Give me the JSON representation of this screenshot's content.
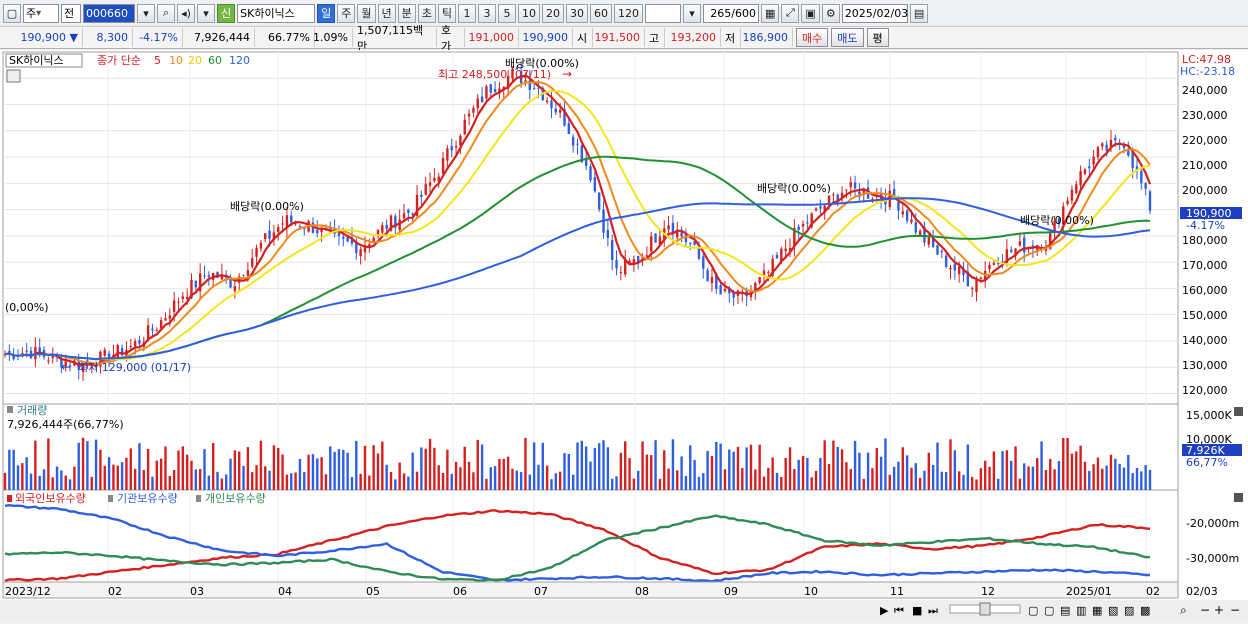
{
  "toolbar": {
    "period_options": [
      "주",
      "전"
    ],
    "stock_code": "000660",
    "stock_name": "SK하이닉스",
    "new_badge": "신",
    "periods": [
      "일",
      "주",
      "월",
      "년",
      "분",
      "초",
      "틱"
    ],
    "active_period": "일",
    "intervals": [
      "1",
      "3",
      "5",
      "10",
      "20",
      "30",
      "60",
      "120"
    ],
    "count_value": "265",
    "count_total": "/600",
    "date": "2025/02/03"
  },
  "quote": {
    "price": "190,900",
    "change": "8,300",
    "change_pct": "-4.17%",
    "volume": "7,926,444",
    "volume_ratio": "66.77%",
    "turnover_pct": "1.09%",
    "amount": "1,507,115백만",
    "bid_label": "호가",
    "ask": "191,000",
    "bid": "190,900",
    "open_label": "시",
    "open": "191,500",
    "high_label": "고",
    "high": "193,200",
    "low_label": "저",
    "low": "186,900",
    "buy_button": "매수",
    "sell_button": "매도",
    "eval_button": "평"
  },
  "price_panel": {
    "stock_label": "SK하이닉스",
    "ma_label": "종가 단순",
    "ma_periods": [
      "5",
      "10",
      "20",
      "60",
      "120"
    ],
    "ma_colors": [
      "#d42020",
      "#f08a1c",
      "#f5e51c",
      "#209030",
      "#2f5fe0"
    ],
    "lc": "LC:47.98",
    "hc": "HC:-23.18",
    "y_ticks": [
      "240,000",
      "230,000",
      "220,000",
      "210,000",
      "200,000",
      "190,000",
      "180,000",
      "170,000",
      "160,000",
      "150,000",
      "140,000",
      "130,000",
      "120,000"
    ],
    "current_price": "190,900",
    "current_change": "-4.17%",
    "annotations": {
      "high": "최고 248,500 (07/11)",
      "low": "최저 129,000 (01/17)",
      "div1": "배당락(0.00%)",
      "div2": "배당락(0.00%)",
      "div3": "배당락(0.00%)",
      "div4": "배당락(0.00%)",
      "div0": "(0,00%)"
    }
  },
  "volume_panel": {
    "title": "거래량",
    "value": "7,926,444주(66,77%)",
    "y_ticks": [
      "15,000K",
      "10,000K"
    ],
    "current": "7,926K",
    "current_pct": "66,77%"
  },
  "investor_panel": {
    "legend": [
      "외국인보유수량",
      "기관보유수량",
      "개인보유수량"
    ],
    "colors": [
      "#d42020",
      "#2f5fe0",
      "#2e8b57"
    ],
    "y_ticks": [
      "-20,000m",
      "-30,000m"
    ]
  },
  "x_axis": {
    "labels": [
      "2023/12",
      "02",
      "03",
      "04",
      "05",
      "06",
      "07",
      "08",
      "09",
      "10",
      "11",
      "12",
      "2025/01",
      "02"
    ],
    "right_label": "02/03"
  },
  "chart_data": {
    "type": "candlestick",
    "price_range": [
      116000,
      250000
    ],
    "ma_close": [
      135000,
      136000,
      133000,
      131000,
      134000,
      138000,
      146000,
      158000,
      166000,
      162000,
      176000,
      186000,
      184000,
      178000,
      176000,
      184000,
      190000,
      204000,
      222000,
      236000,
      242000,
      236000,
      224000,
      204000,
      166000,
      172000,
      186000,
      176000,
      158000,
      156000,
      166000,
      180000,
      190000,
      198000,
      196000,
      194000,
      180000,
      170000,
      162000,
      172000,
      176000,
      178000,
      200000,
      212000,
      216000,
      190900
    ],
    "volume_range": [
      0,
      16000000
    ],
    "investor_range": [
      -36000,
      -13000
    ]
  }
}
